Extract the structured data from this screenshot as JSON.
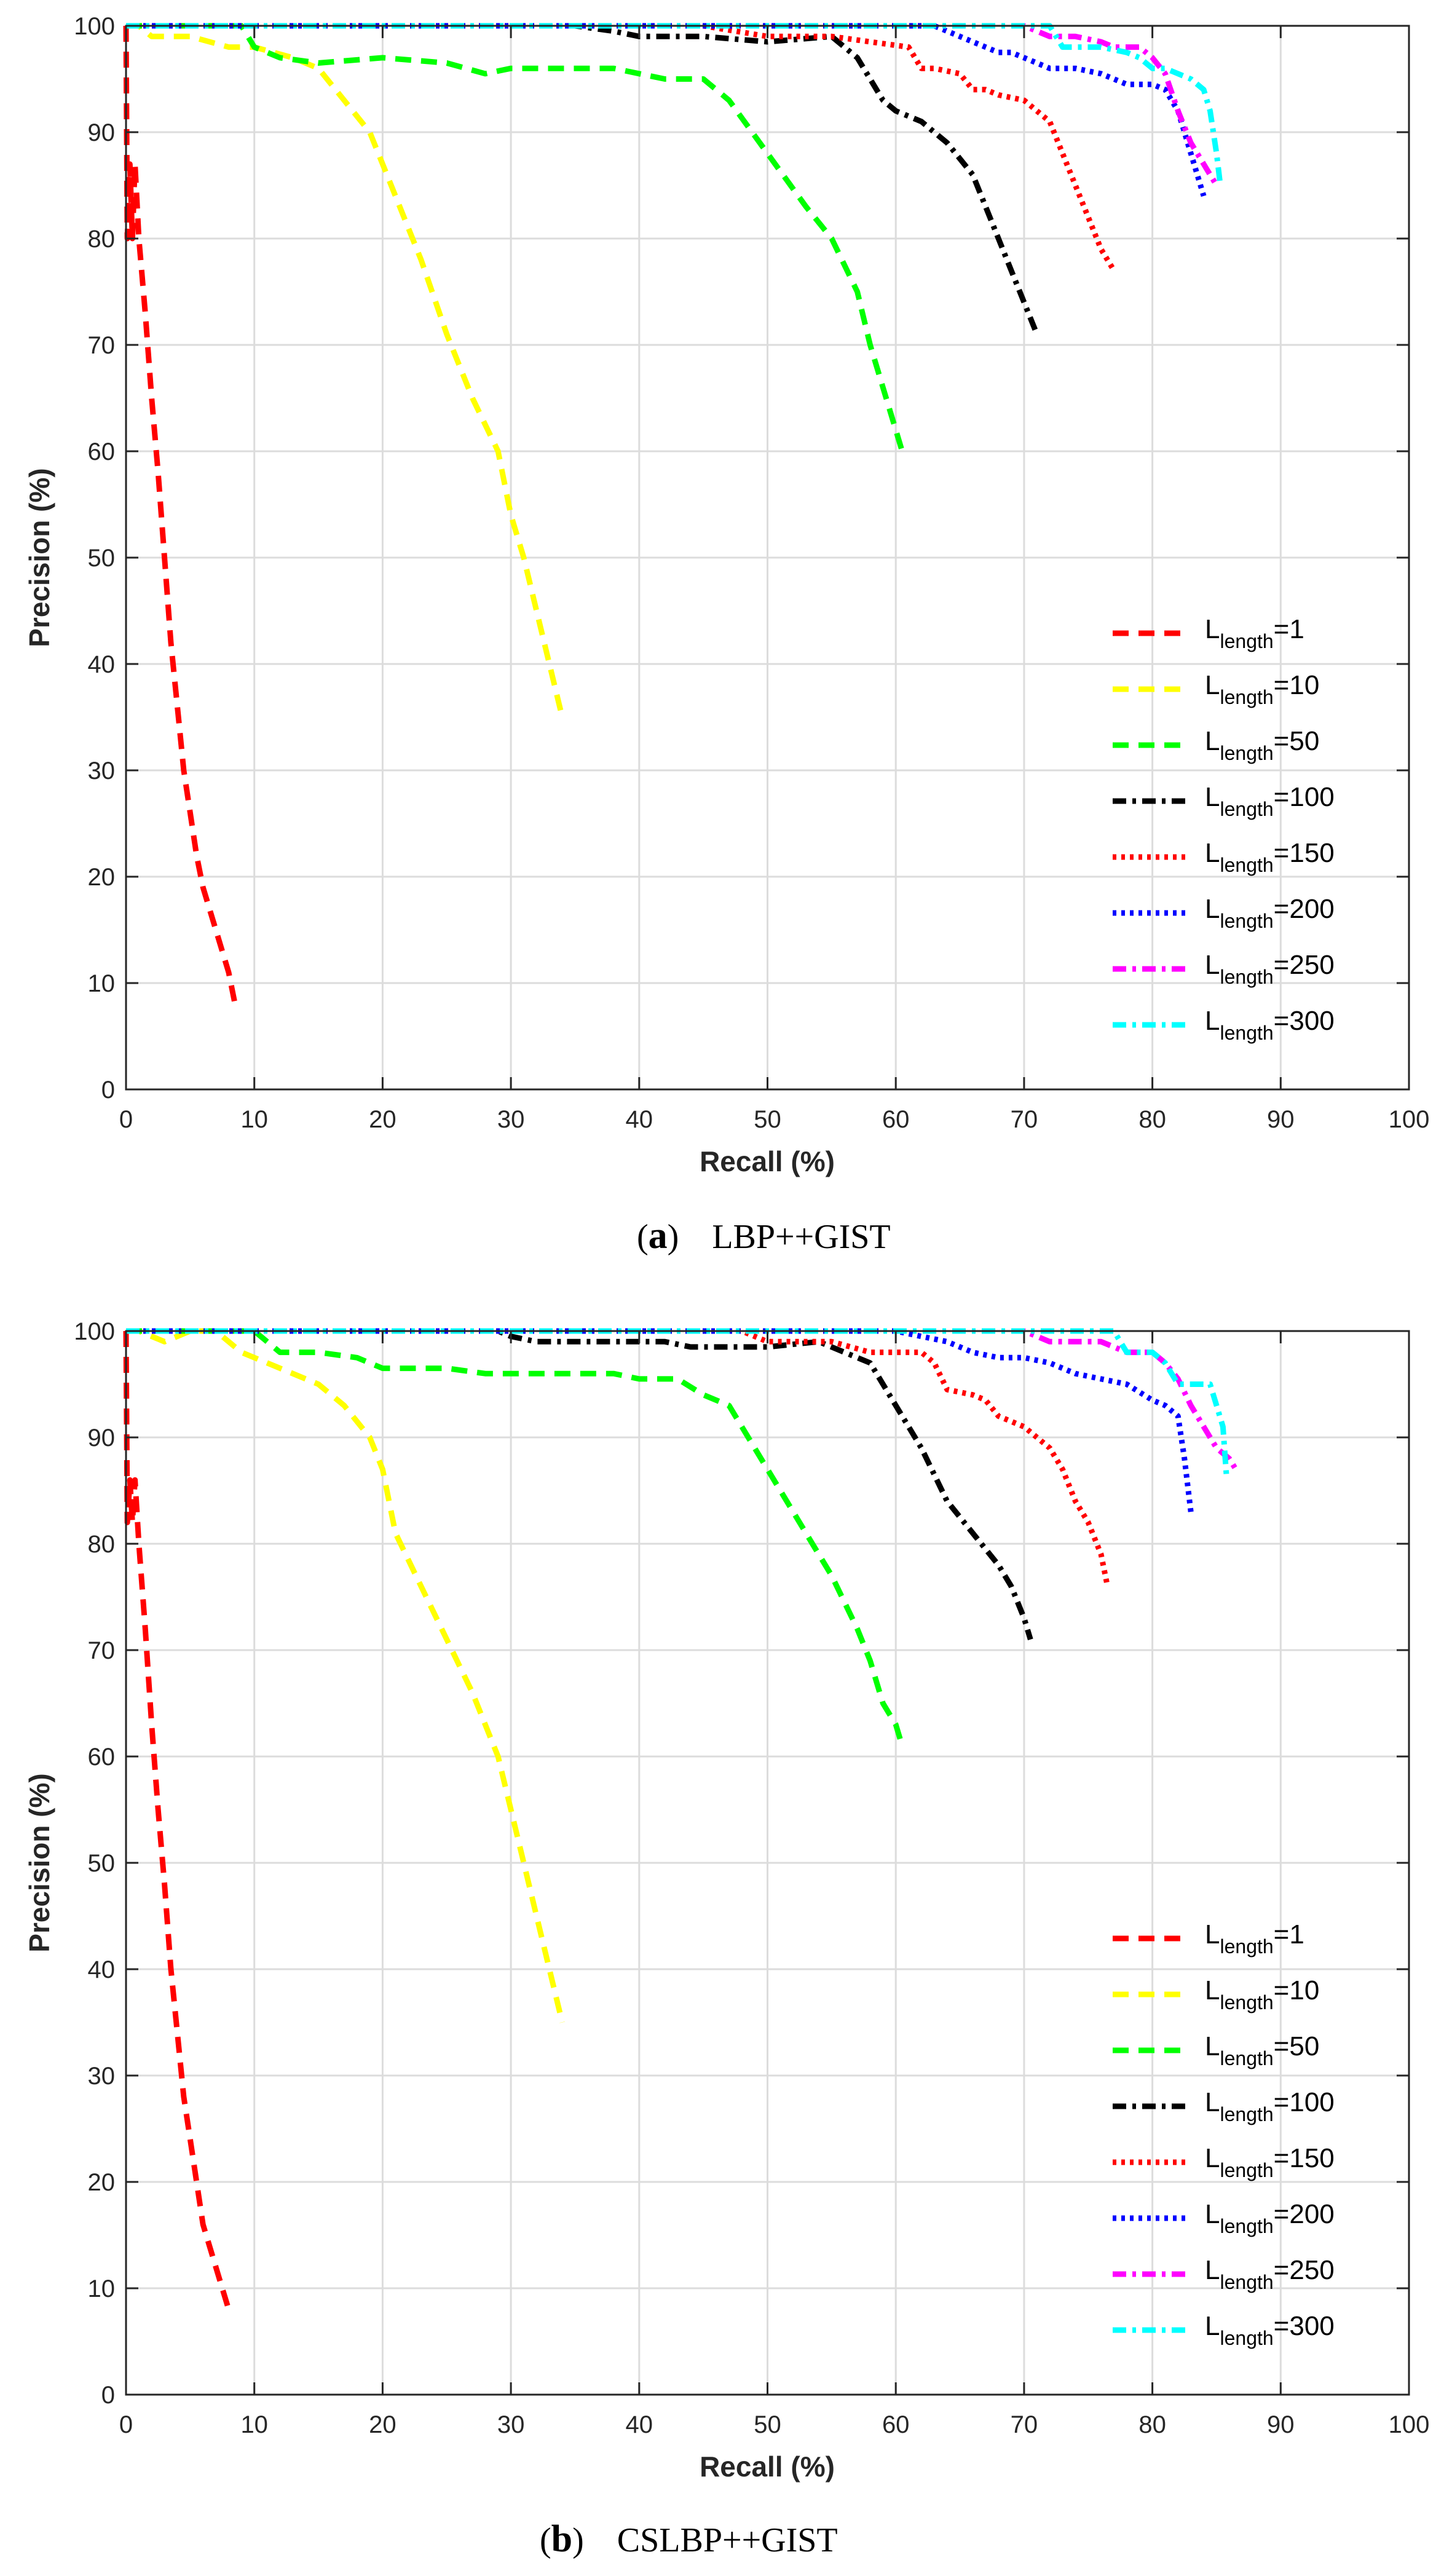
{
  "figure": {
    "panels": [
      {
        "caption_letter": "a",
        "caption_text": "LBP++GIST"
      },
      {
        "caption_letter": "b",
        "caption_text": "CSLBP++GIST"
      }
    ]
  },
  "chart_data": [
    {
      "type": "line",
      "title": "",
      "caption": "(a) LBP++GIST",
      "xlabel": "Recall (%)",
      "ylabel": "Precision (%)",
      "xlim": [
        0,
        100
      ],
      "ylim": [
        0,
        100
      ],
      "xticks": [
        0,
        10,
        20,
        30,
        40,
        50,
        60,
        70,
        80,
        90,
        100
      ],
      "yticks": [
        0,
        10,
        20,
        30,
        40,
        50,
        60,
        70,
        80,
        90,
        100
      ],
      "grid": true,
      "legend_position": "bottom-right",
      "series": [
        {
          "name": "L_length=1",
          "legend_base": "L",
          "legend_sub": "length",
          "legend_value": "=1",
          "color": "#ff0000",
          "style": "dashed",
          "x": [
            0,
            0.1,
            0.3,
            0.5,
            0.7,
            1.0,
            1.5,
            2.0,
            2.5,
            3.0,
            3.5,
            4.0,
            4.5,
            5.0,
            5.5,
            6.0,
            7.0,
            8.0,
            8.5
          ],
          "y": [
            100,
            80,
            87,
            80,
            87,
            80,
            73,
            65,
            58,
            50,
            42,
            36,
            30,
            26,
            22,
            19,
            15,
            11,
            8
          ]
        },
        {
          "name": "L_length=10",
          "legend_base": "L",
          "legend_sub": "length",
          "legend_value": "=10",
          "color": "#ffff00",
          "style": "dashed",
          "x": [
            0,
            1,
            2,
            5,
            8,
            10,
            13,
            15,
            17,
            19,
            21,
            23,
            25,
            27,
            29,
            30,
            31,
            32,
            33,
            34
          ],
          "y": [
            100,
            100,
            99,
            99,
            98,
            98,
            97,
            96,
            93,
            90,
            84,
            78,
            71,
            65,
            60,
            54,
            50,
            45,
            40,
            35
          ]
        },
        {
          "name": "L_length=50",
          "legend_base": "L",
          "legend_sub": "length",
          "legend_value": "=50",
          "color": "#00ff00",
          "style": "dashed",
          "x": [
            0,
            5,
            9,
            10,
            12,
            15,
            20,
            25,
            28,
            30,
            35,
            38,
            42,
            45,
            47,
            50,
            53,
            55,
            57,
            58,
            59,
            60,
            60.5
          ],
          "y": [
            100,
            100,
            100,
            98,
            97,
            96.5,
            97,
            96.5,
            95.5,
            96,
            96,
            96,
            95,
            95,
            93,
            88,
            83,
            80,
            75,
            70,
            66,
            62,
            60
          ]
        },
        {
          "name": "L_length=100",
          "legend_base": "L",
          "legend_sub": "length",
          "legend_value": "=100",
          "color": "#000000",
          "style": "dashdot",
          "x": [
            0,
            20,
            35,
            38,
            40,
            45,
            50,
            55,
            56,
            57,
            58,
            59,
            60,
            62,
            64,
            66,
            67,
            68,
            69,
            70,
            71
          ],
          "y": [
            100,
            100,
            100,
            99.5,
            99,
            99,
            98.5,
            99,
            98,
            97,
            95,
            93,
            92,
            91,
            89,
            86,
            83,
            80,
            77,
            74,
            71
          ]
        },
        {
          "name": "L_length=150",
          "legend_base": "L",
          "legend_sub": "length",
          "legend_value": "=150",
          "color": "#ff0000",
          "style": "dotted",
          "x": [
            0,
            20,
            45,
            50,
            55,
            58,
            61,
            62,
            63,
            65,
            66,
            67,
            68,
            70,
            72,
            73,
            74,
            75,
            76,
            77
          ],
          "y": [
            100,
            100,
            100,
            99,
            99,
            98.5,
            98,
            96,
            96,
            95.5,
            94,
            94,
            93.5,
            93,
            91,
            88,
            85,
            82,
            79,
            77
          ]
        },
        {
          "name": "L_length=200",
          "legend_base": "L",
          "legend_sub": "length",
          "legend_value": "=200",
          "color": "#0000ff",
          "style": "dotted",
          "x": [
            0,
            30,
            60,
            63,
            65,
            66,
            67,
            68,
            69,
            70,
            71,
            72,
            74,
            76,
            77,
            78,
            80,
            81,
            82,
            83,
            84
          ],
          "y": [
            100,
            100,
            100,
            100,
            99,
            98.5,
            98,
            97.5,
            97.5,
            97,
            96.5,
            96,
            96,
            95.5,
            95,
            94.5,
            94.5,
            94,
            92,
            88,
            84
          ]
        },
        {
          "name": "L_length=250",
          "legend_base": "L",
          "legend_sub": "length",
          "legend_value": "=250",
          "color": "#ff00ff",
          "style": "dashdot",
          "x": [
            0,
            40,
            70,
            71,
            72,
            74,
            76,
            77,
            78,
            79,
            80,
            81,
            82,
            83,
            84,
            85
          ],
          "y": [
            100,
            100,
            100,
            99.5,
            99,
            99,
            98.5,
            98,
            98,
            98,
            97,
            95.5,
            92,
            89,
            87,
            85
          ]
        },
        {
          "name": "L_length=300",
          "legend_base": "L",
          "legend_sub": "length",
          "legend_value": "=300",
          "color": "#00ffff",
          "style": "dashdot",
          "x": [
            0,
            40,
            72,
            73,
            75,
            76,
            78,
            79,
            80,
            81,
            82,
            83,
            84,
            84.5,
            85,
            85.3
          ],
          "y": [
            100,
            100,
            100,
            98,
            98,
            98,
            97.5,
            97,
            96,
            96,
            95.5,
            95,
            94,
            92,
            88,
            85
          ]
        }
      ]
    },
    {
      "type": "line",
      "title": "",
      "caption": "(b) CSLBP++GIST",
      "xlabel": "Recall (%)",
      "ylabel": "Precision (%)",
      "xlim": [
        0,
        100
      ],
      "ylim": [
        0,
        100
      ],
      "xticks": [
        0,
        10,
        20,
        30,
        40,
        50,
        60,
        70,
        80,
        90,
        100
      ],
      "yticks": [
        0,
        10,
        20,
        30,
        40,
        50,
        60,
        70,
        80,
        90,
        100
      ],
      "grid": true,
      "legend_position": "bottom-right",
      "series": [
        {
          "name": "L_length=1",
          "legend_base": "L",
          "legend_sub": "length",
          "legend_value": "=1",
          "color": "#ff0000",
          "style": "dashed",
          "x": [
            0,
            0.1,
            0.3,
            0.5,
            0.7,
            1.0,
            1.5,
            2.0,
            2.5,
            3.0,
            3.5,
            4.0,
            4.5,
            5.0,
            5.5,
            6.0,
            7.0,
            8.0
          ],
          "y": [
            100,
            82,
            86,
            82,
            86,
            80,
            72,
            63,
            55,
            48,
            40,
            34,
            28,
            24,
            20,
            16,
            12,
            8
          ]
        },
        {
          "name": "L_length=10",
          "legend_base": "L",
          "legend_sub": "length",
          "legend_value": "=10",
          "color": "#ffff00",
          "style": "dashed",
          "x": [
            0,
            1,
            3,
            5,
            7,
            9,
            11,
            13,
            15,
            17,
            19,
            20,
            21,
            23,
            25,
            27,
            29,
            30,
            31,
            32,
            33,
            34
          ],
          "y": [
            100,
            100,
            99,
            100,
            100,
            98,
            97,
            96,
            95,
            93,
            90,
            87,
            81,
            76,
            71,
            66,
            60,
            55,
            50,
            45,
            40,
            35
          ]
        },
        {
          "name": "L_length=50",
          "legend_base": "L",
          "legend_sub": "length",
          "legend_value": "=50",
          "color": "#00ff00",
          "style": "dashed",
          "x": [
            0,
            5,
            10,
            12,
            15,
            18,
            20,
            25,
            28,
            30,
            35,
            38,
            40,
            43,
            45,
            47,
            49,
            51,
            53,
            55,
            57,
            58,
            59,
            60,
            60.5
          ],
          "y": [
            100,
            100,
            100,
            98,
            98,
            97.5,
            96.5,
            96.5,
            96,
            96,
            96,
            96,
            95.5,
            95.5,
            94,
            93,
            89,
            85,
            81,
            77,
            72,
            69,
            65,
            63,
            61
          ]
        },
        {
          "name": "L_length=100",
          "legend_base": "L",
          "legend_sub": "length",
          "legend_value": "=100",
          "color": "#000000",
          "style": "dashdot",
          "x": [
            0,
            20,
            29,
            30,
            32,
            35,
            40,
            42,
            44,
            50,
            54,
            56,
            58,
            60,
            62,
            64,
            66,
            68,
            69,
            70,
            70.5
          ],
          "y": [
            100,
            100,
            100,
            99.5,
            99,
            99,
            99,
            99,
            98.5,
            98.5,
            99,
            98,
            97,
            93,
            89,
            84,
            81,
            78,
            76,
            73,
            71
          ]
        },
        {
          "name": "L_length=150",
          "legend_base": "L",
          "legend_sub": "length",
          "legend_value": "=150",
          "color": "#ff0000",
          "style": "dotted",
          "x": [
            0,
            20,
            48,
            50,
            55,
            58,
            60,
            62,
            63,
            64,
            66,
            67,
            68,
            70,
            72,
            73,
            74,
            75,
            76,
            76.5
          ],
          "y": [
            100,
            100,
            100,
            99,
            99,
            98,
            98,
            98,
            97,
            94.5,
            94,
            93.5,
            92,
            91,
            89,
            87,
            84,
            82,
            79,
            76
          ]
        },
        {
          "name": "L_length=200",
          "legend_base": "L",
          "legend_sub": "length",
          "legend_value": "=200",
          "color": "#0000ff",
          "style": "dotted",
          "x": [
            0,
            40,
            60,
            62,
            64,
            66,
            68,
            70,
            72,
            74,
            76,
            78,
            80,
            81,
            82,
            82.5,
            83
          ],
          "y": [
            100,
            100,
            100,
            99.5,
            99,
            98,
            97.5,
            97.5,
            97,
            96,
            95.5,
            95,
            93.5,
            93,
            92,
            88,
            83
          ]
        },
        {
          "name": "L_length=250",
          "legend_base": "L",
          "legend_sub": "length",
          "legend_value": "=250",
          "color": "#ff00ff",
          "style": "dashdot",
          "x": [
            0,
            40,
            70,
            72,
            74,
            76,
            77,
            78,
            80,
            81,
            82,
            83,
            84,
            85,
            86,
            86.5
          ],
          "y": [
            100,
            100,
            100,
            99,
            99,
            99,
            98.5,
            98,
            98,
            97,
            95.5,
            93,
            91,
            89,
            88,
            87
          ]
        },
        {
          "name": "L_length=300",
          "legend_base": "L",
          "legend_sub": "length",
          "legend_value": "=300",
          "color": "#00ffff",
          "style": "dashdot",
          "x": [
            0,
            40,
            77,
            78,
            80,
            81,
            82,
            83,
            84,
            84.5,
            85,
            85.5,
            85.8
          ],
          "y": [
            100,
            100,
            100,
            98,
            98,
            97,
            95,
            95,
            95,
            95,
            93,
            91,
            86
          ]
        }
      ]
    }
  ]
}
